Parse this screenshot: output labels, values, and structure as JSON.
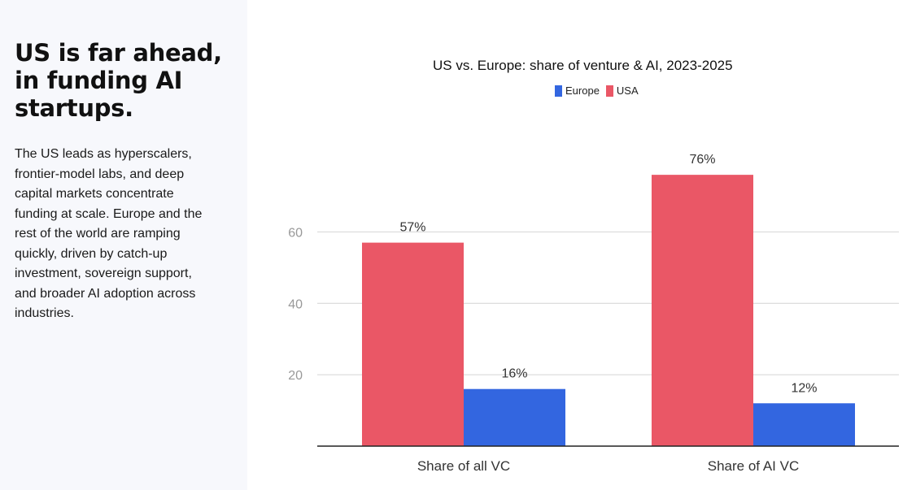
{
  "sidebar": {
    "headline": "US is far ahead, in funding AI startups.",
    "body": "The US leads as hyperscalers, frontier-model labs, and deep capital markets concentrate funding at scale. Europe and the rest of the world are ramping quickly, driven by catch-up investment, sovereign support, and broader AI adoption across industries."
  },
  "chart_data": {
    "type": "bar",
    "title": "US vs. Europe: share of venture & AI, 2023-2025",
    "categories": [
      "Share of all VC",
      "Share of AI VC"
    ],
    "series": [
      {
        "name": "USA",
        "values": [
          57,
          76
        ],
        "labels": [
          "57%",
          "76%"
        ],
        "color": "#ea5766"
      },
      {
        "name": "Europe",
        "values": [
          16,
          12
        ],
        "labels": [
          "16%",
          "12%"
        ],
        "color": "#3366e0"
      }
    ],
    "legend_order": [
      "Europe",
      "USA"
    ],
    "legend_position": "top-center",
    "yticks": [
      20,
      40,
      60
    ],
    "ylim": [
      0,
      80
    ],
    "grid": true,
    "xlabel": "",
    "ylabel": ""
  }
}
